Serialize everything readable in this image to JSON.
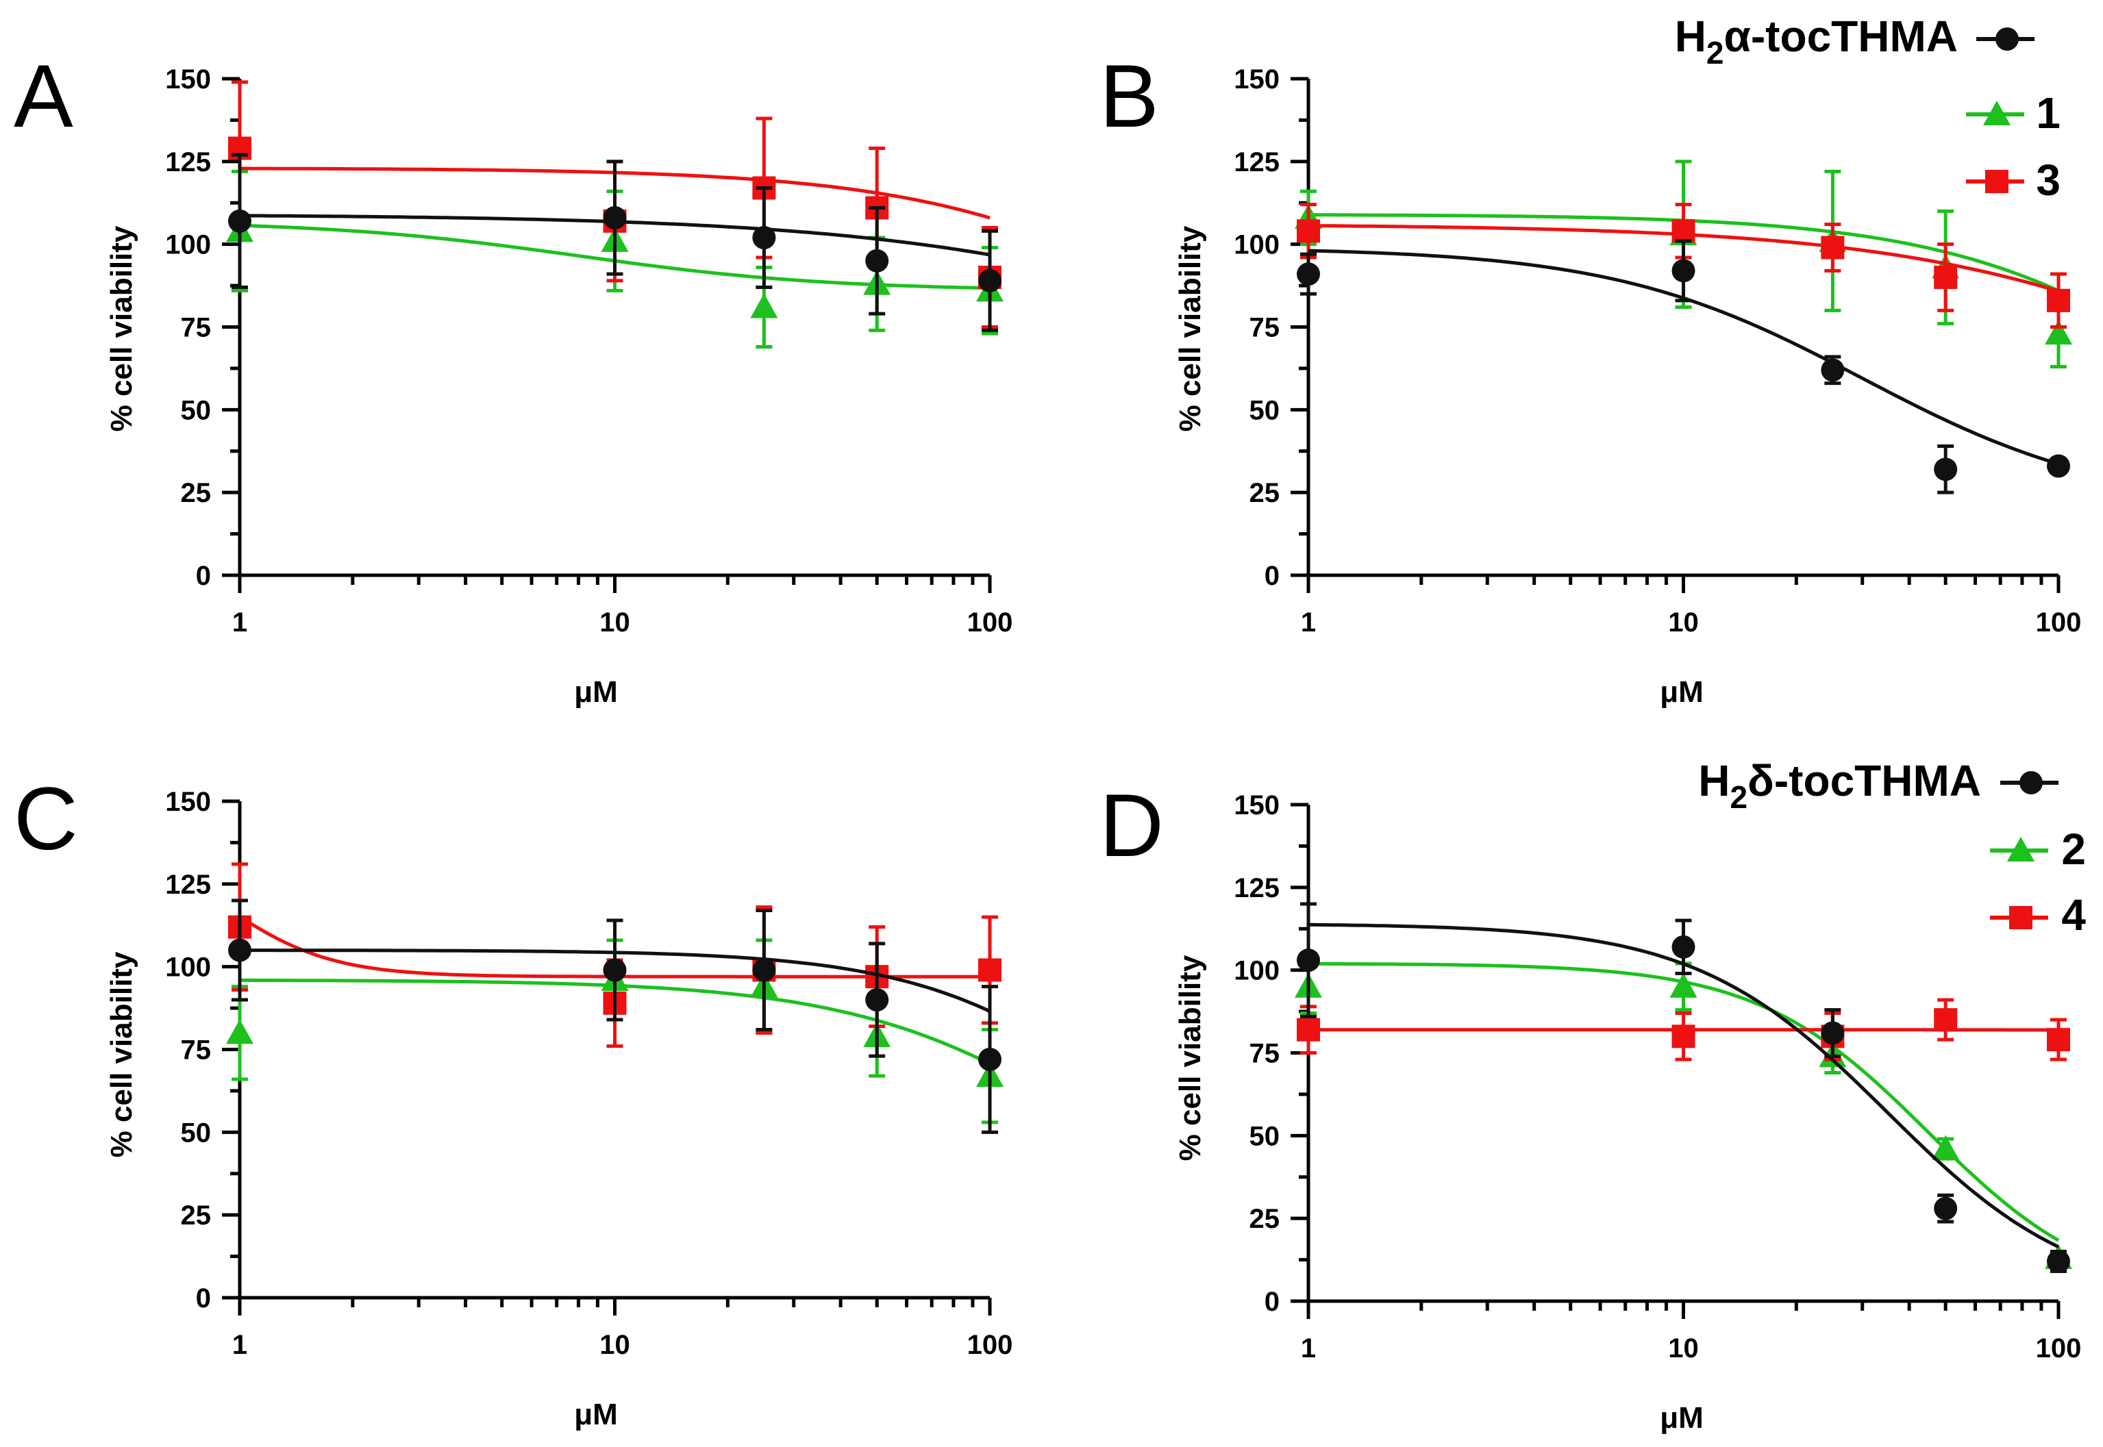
{
  "figure": {
    "colors": {
      "black": "#111111",
      "green": "#1dc01d",
      "red": "#ee1111"
    }
  },
  "chart_data": [
    {
      "panel": "A",
      "type": "line",
      "xscale": "log",
      "xlim": [
        1,
        100
      ],
      "ylim": [
        0,
        150
      ],
      "xticks": [
        "1",
        "10",
        "100"
      ],
      "yticks": [
        "0",
        "25",
        "50",
        "75",
        "100",
        "125",
        "150"
      ],
      "xlabel": "μM",
      "ylabel": "% cell viability",
      "x": [
        1,
        10,
        25,
        50,
        100
      ],
      "series": [
        {
          "name": "black",
          "color": "#111111",
          "marker": "circle",
          "values": [
            107,
            108,
            102,
            95,
            89
          ],
          "err": [
            20,
            17,
            15,
            16,
            15
          ],
          "fit": {
            "top": 109,
            "bottom": 20,
            "ec50": 1000,
            "hill": 0.8
          }
        },
        {
          "name": "green",
          "color": "#1dc01d",
          "marker": "triangle",
          "values": [
            104,
            101,
            81,
            88,
            86
          ],
          "err": [
            18,
            15,
            12,
            14,
            13
          ],
          "fit": {
            "top": 107,
            "bottom": 86,
            "ec50": 8,
            "hill": 1.3
          }
        },
        {
          "name": "red",
          "color": "#ee1111",
          "marker": "square",
          "values": [
            129,
            107,
            117,
            111,
            90
          ],
          "err": [
            20,
            18,
            21,
            18,
            15
          ],
          "fit": {
            "top": 123,
            "bottom": 0,
            "ec50": 600,
            "hill": 1.1
          }
        }
      ]
    },
    {
      "panel": "B",
      "type": "line",
      "xscale": "log",
      "xlim": [
        1,
        100
      ],
      "ylim": [
        0,
        150
      ],
      "xticks": [
        "1",
        "10",
        "100"
      ],
      "yticks": [
        "0",
        "25",
        "50",
        "75",
        "100",
        "125",
        "150"
      ],
      "xlabel": "μM",
      "ylabel": "% cell viability",
      "legend": [
        "H",
        "2",
        "α-tocTHMA",
        "1",
        "3"
      ],
      "x": [
        1,
        10,
        25,
        50,
        100
      ],
      "series": [
        {
          "name": "H2α-tocTHMA",
          "color": "#111111",
          "marker": "circle",
          "values": [
            91,
            92,
            62,
            32,
            33
          ],
          "err": [
            6,
            9,
            4,
            7,
            2
          ],
          "fit": {
            "top": 99,
            "bottom": 20,
            "ec50": 30,
            "hill": 1.3
          }
        },
        {
          "name": "1",
          "color": "#1dc01d",
          "marker": "triangle",
          "values": [
            108,
            103,
            101,
            93,
            73
          ],
          "err": [
            8,
            22,
            21,
            17,
            10
          ],
          "fit": {
            "top": 109,
            "bottom": 0,
            "ec50": 300,
            "hill": 1.2
          }
        },
        {
          "name": "3",
          "color": "#ee1111",
          "marker": "square",
          "values": [
            104,
            104,
            99,
            90,
            83
          ],
          "err": [
            8,
            8,
            7,
            10,
            8
          ],
          "fit": {
            "top": 106,
            "bottom": 0,
            "ec50": 500,
            "hill": 0.9
          }
        }
      ]
    },
    {
      "panel": "C",
      "type": "line",
      "xscale": "log",
      "xlim": [
        1,
        100
      ],
      "ylim": [
        0,
        150
      ],
      "xticks": [
        "1",
        "10",
        "100"
      ],
      "yticks": [
        "0",
        "25",
        "50",
        "75",
        "100",
        "125",
        "150"
      ],
      "xlabel": "μM",
      "ylabel": "% cell viability",
      "x": [
        1,
        10,
        25,
        50,
        100
      ],
      "series": [
        {
          "name": "black",
          "color": "#111111",
          "marker": "circle",
          "values": [
            105,
            99,
            99,
            90,
            72
          ],
          "err": [
            15,
            15,
            18,
            17,
            22
          ],
          "fit": {
            "top": 105,
            "bottom": 0,
            "ec50": 280,
            "hill": 1.5
          }
        },
        {
          "name": "green",
          "color": "#1dc01d",
          "marker": "triangle",
          "values": [
            80,
            96,
            94,
            79,
            67
          ],
          "err": [
            14,
            12,
            14,
            12,
            14
          ],
          "fit": {
            "top": 96,
            "bottom": 0,
            "ec50": 220,
            "hill": 1.3
          }
        },
        {
          "name": "red",
          "color": "#ee1111",
          "marker": "square",
          "values": [
            112,
            89,
            99,
            97,
            99
          ],
          "err": [
            19,
            13,
            19,
            15,
            16
          ],
          "fit": {
            "top": 140,
            "bottom": 97,
            "ec50": 0.9,
            "hill": 3
          }
        }
      ]
    },
    {
      "panel": "D",
      "type": "line",
      "xscale": "log",
      "xlim": [
        1,
        100
      ],
      "ylim": [
        0,
        150
      ],
      "xticks": [
        "1",
        "10",
        "100"
      ],
      "yticks": [
        "0",
        "25",
        "50",
        "75",
        "100",
        "125",
        "150"
      ],
      "xlabel": "μM",
      "ylabel": "% cell viability",
      "legend": [
        "H",
        "2",
        "δ-tocTHMA",
        "2",
        "4"
      ],
      "x": [
        1,
        10,
        25,
        50,
        100
      ],
      "series": [
        {
          "name": "H2δ-tocTHMA",
          "color": "#111111",
          "marker": "circle",
          "values": [
            103,
            107,
            81,
            28,
            12
          ],
          "err": [
            17,
            8,
            7,
            4,
            3
          ],
          "fit": {
            "top": 114,
            "bottom": 0,
            "ec50": 35,
            "hill": 1.7
          }
        },
        {
          "name": "2",
          "color": "#1dc01d",
          "marker": "triangle",
          "values": [
            95,
            95,
            74,
            46,
            13
          ],
          "err": [
            8,
            7,
            5,
            3,
            2
          ],
          "fit": {
            "top": 102,
            "bottom": 0,
            "ec50": 45,
            "hill": 1.9
          }
        },
        {
          "name": "4",
          "color": "#ee1111",
          "marker": "square",
          "values": [
            82,
            80,
            80,
            85,
            79
          ],
          "err": [
            7,
            7,
            7,
            6,
            6
          ],
          "fit": {
            "top": 82,
            "bottom": 0,
            "ec50": 100000,
            "hill": 1
          }
        }
      ]
    }
  ]
}
